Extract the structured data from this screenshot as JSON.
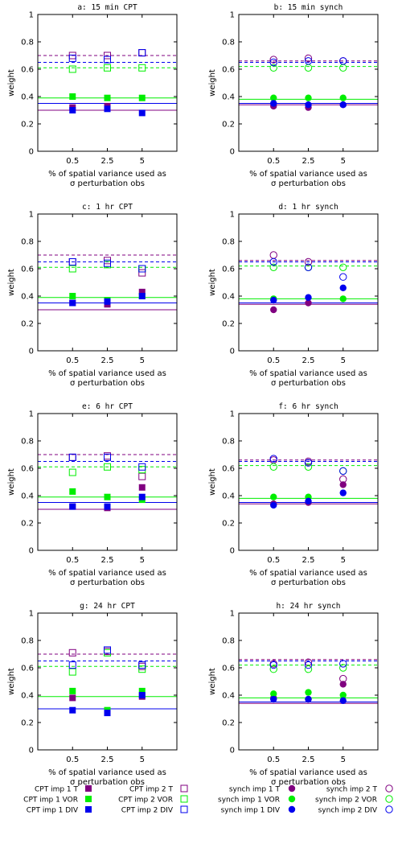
{
  "chart_data": [
    {
      "type": "scatter",
      "title": "a: 15 min CPT",
      "xlabel": [
        "% of spatial variance used as",
        "σ perturbation obs"
      ],
      "ylabel": "weight",
      "xlim": [
        0,
        4
      ],
      "ylim": [
        0,
        1
      ],
      "x_ticks": [
        1,
        2,
        3
      ],
      "x_tick_labels": [
        "0.5",
        "2.5",
        "5"
      ],
      "y_ticks": [
        "0",
        "0.2",
        "0.4",
        "0.6",
        "0.8",
        "1"
      ],
      "markers": "square",
      "series": [
        {
          "name": "CPT imp 1 T",
          "color": "#800080",
          "filled": true,
          "values": [
            0.32,
            0.33,
            null
          ]
        },
        {
          "name": "CPT imp 1 VOR",
          "color": "#00ee00",
          "filled": true,
          "values": [
            0.4,
            0.39,
            0.39
          ]
        },
        {
          "name": "CPT imp 1 DIV",
          "color": "#0000ee",
          "filled": true,
          "values": [
            0.3,
            0.31,
            0.28
          ]
        },
        {
          "name": "CPT imp 2 T",
          "color": "#800080",
          "filled": false,
          "values": [
            0.7,
            0.7,
            0.72
          ]
        },
        {
          "name": "CPT imp 2 VOR",
          "color": "#00ee00",
          "filled": false,
          "values": [
            0.6,
            0.61,
            0.61
          ]
        },
        {
          "name": "CPT imp 2 DIV",
          "color": "#0000ee",
          "filled": false,
          "values": [
            0.68,
            0.67,
            0.72
          ]
        }
      ],
      "reference_lines": {
        "solid": {
          "T": 0.3,
          "VOR": 0.39,
          "DIV": 0.35
        },
        "dashed": {
          "T": 0.7,
          "VOR": 0.61,
          "DIV": 0.65
        }
      }
    },
    {
      "type": "scatter",
      "title": "b: 15 min synch",
      "xlabel": [
        "% of spatial variance used as",
        "σ perturbation obs"
      ],
      "ylabel": "weight",
      "xlim": [
        0,
        4
      ],
      "ylim": [
        0,
        1
      ],
      "x_ticks": [
        1,
        2,
        3
      ],
      "x_tick_labels": [
        "0.5",
        "2.5",
        "5"
      ],
      "y_ticks": [
        "0",
        "0.2",
        "0.4",
        "0.6",
        "0.8",
        "1"
      ],
      "markers": "circle",
      "series": [
        {
          "name": "synch imp 1 T",
          "color": "#800080",
          "filled": true,
          "values": [
            0.33,
            0.32,
            0.34
          ]
        },
        {
          "name": "synch imp 1 VOR",
          "color": "#00ee00",
          "filled": true,
          "values": [
            0.39,
            0.39,
            0.39
          ]
        },
        {
          "name": "synch imp 1 DIV",
          "color": "#0000ee",
          "filled": true,
          "values": [
            0.35,
            0.34,
            0.34
          ]
        },
        {
          "name": "synch imp 2 T",
          "color": "#800080",
          "filled": false,
          "values": [
            0.67,
            0.68,
            0.66
          ]
        },
        {
          "name": "synch imp 2 VOR",
          "color": "#00ee00",
          "filled": false,
          "values": [
            0.61,
            0.61,
            0.61
          ]
        },
        {
          "name": "synch imp 2 DIV",
          "color": "#0000ee",
          "filled": false,
          "values": [
            0.65,
            0.66,
            0.66
          ]
        }
      ],
      "reference_lines": {
        "solid": {
          "T": 0.34,
          "VOR": 0.38,
          "DIV": 0.35
        },
        "dashed": {
          "T": 0.66,
          "VOR": 0.62,
          "DIV": 0.65
        }
      }
    },
    {
      "type": "scatter",
      "title": "c: 1 hr CPT",
      "xlabel": [
        "% of spatial variance used as",
        "σ perturbation obs"
      ],
      "ylabel": "weight",
      "xlim": [
        0,
        4
      ],
      "ylim": [
        0,
        1
      ],
      "x_ticks": [
        1,
        2,
        3
      ],
      "x_tick_labels": [
        "0.5",
        "2.5",
        "5"
      ],
      "y_ticks": [
        "0",
        "0.2",
        "0.4",
        "0.6",
        "0.8",
        "1"
      ],
      "markers": "square",
      "series": [
        {
          "name": "CPT imp 1 T",
          "color": "#800080",
          "filled": true,
          "values": [
            0.35,
            0.34,
            0.43
          ]
        },
        {
          "name": "CPT imp 1 VOR",
          "color": "#00ee00",
          "filled": true,
          "values": [
            0.4,
            0.37,
            0.4
          ]
        },
        {
          "name": "CPT imp 1 DIV",
          "color": "#0000ee",
          "filled": true,
          "values": [
            0.35,
            0.36,
            0.4
          ]
        },
        {
          "name": "CPT imp 2 T",
          "color": "#800080",
          "filled": false,
          "values": [
            0.65,
            0.66,
            0.57
          ]
        },
        {
          "name": "CPT imp 2 VOR",
          "color": "#00ee00",
          "filled": false,
          "values": [
            0.6,
            0.63,
            0.6
          ]
        },
        {
          "name": "CPT imp 2 DIV",
          "color": "#0000ee",
          "filled": false,
          "values": [
            0.65,
            0.64,
            0.6
          ]
        }
      ],
      "reference_lines": {
        "solid": {
          "T": 0.3,
          "VOR": 0.39,
          "DIV": 0.35
        },
        "dashed": {
          "T": 0.7,
          "VOR": 0.61,
          "DIV": 0.65
        }
      }
    },
    {
      "type": "scatter",
      "title": "d: 1 hr synch",
      "xlabel": [
        "% of spatial variance used as",
        "σ perturbation obs"
      ],
      "ylabel": "weight",
      "xlim": [
        0,
        4
      ],
      "ylim": [
        0,
        1
      ],
      "x_ticks": [
        1,
        2,
        3
      ],
      "x_tick_labels": [
        "0.5",
        "2.5",
        "5"
      ],
      "y_ticks": [
        "0",
        "0.2",
        "0.4",
        "0.6",
        "0.8",
        "1"
      ],
      "markers": "circle",
      "series": [
        {
          "name": "synch imp 1 T",
          "color": "#800080",
          "filled": true,
          "values": [
            0.3,
            0.35,
            null
          ]
        },
        {
          "name": "synch imp 1 VOR",
          "color": "#00ee00",
          "filled": true,
          "values": [
            0.38,
            null,
            0.38
          ]
        },
        {
          "name": "synch imp 1 DIV",
          "color": "#0000ee",
          "filled": true,
          "values": [
            0.37,
            0.39,
            0.46
          ]
        },
        {
          "name": "synch imp 2 T",
          "color": "#800080",
          "filled": false,
          "values": [
            0.7,
            0.65,
            null
          ]
        },
        {
          "name": "synch imp 2 VOR",
          "color": "#00ee00",
          "filled": false,
          "values": [
            0.61,
            0.61,
            0.61
          ]
        },
        {
          "name": "synch imp 2 DIV",
          "color": "#0000ee",
          "filled": false,
          "values": [
            0.65,
            0.61,
            0.54
          ]
        }
      ],
      "reference_lines": {
        "solid": {
          "T": 0.34,
          "VOR": 0.38,
          "DIV": 0.35
        },
        "dashed": {
          "T": 0.66,
          "VOR": 0.62,
          "DIV": 0.65
        }
      }
    },
    {
      "type": "scatter",
      "title": "e: 6 hr CPT",
      "xlabel": [
        "% of spatial variance used as",
        "σ perturbation obs"
      ],
      "ylabel": "weight",
      "xlim": [
        0,
        4
      ],
      "ylim": [
        0,
        1
      ],
      "x_ticks": [
        1,
        2,
        3
      ],
      "x_tick_labels": [
        "0.5",
        "2.5",
        "5"
      ],
      "y_ticks": [
        "0",
        "0.2",
        "0.4",
        "0.6",
        "0.8",
        "1"
      ],
      "markers": "square",
      "series": [
        {
          "name": "CPT imp 1 T",
          "color": "#800080",
          "filled": true,
          "values": [
            0.32,
            0.31,
            0.46
          ]
        },
        {
          "name": "CPT imp 1 VOR",
          "color": "#00ee00",
          "filled": true,
          "values": [
            0.43,
            0.39,
            0.37
          ]
        },
        {
          "name": "CPT imp 1 DIV",
          "color": "#0000ee",
          "filled": true,
          "values": [
            0.32,
            0.32,
            0.39
          ]
        },
        {
          "name": "CPT imp 2 T",
          "color": "#800080",
          "filled": false,
          "values": [
            0.68,
            0.69,
            0.54
          ]
        },
        {
          "name": "CPT imp 2 VOR",
          "color": "#00ee00",
          "filled": false,
          "values": [
            0.57,
            0.61,
            0.59
          ]
        },
        {
          "name": "CPT imp 2 DIV",
          "color": "#0000ee",
          "filled": false,
          "values": [
            0.68,
            0.68,
            0.61
          ]
        }
      ],
      "reference_lines": {
        "solid": {
          "T": 0.3,
          "VOR": 0.39,
          "DIV": 0.35
        },
        "dashed": {
          "T": 0.7,
          "VOR": 0.61,
          "DIV": 0.65
        }
      }
    },
    {
      "type": "scatter",
      "title": "f: 6 hr synch",
      "xlabel": [
        "% of spatial variance used as",
        "σ perturbation obs"
      ],
      "ylabel": "weight",
      "xlim": [
        0,
        4
      ],
      "ylim": [
        0,
        1
      ],
      "x_ticks": [
        1,
        2,
        3
      ],
      "x_tick_labels": [
        "0.5",
        "2.5",
        "5"
      ],
      "y_ticks": [
        "0",
        "0.2",
        "0.4",
        "0.6",
        "0.8",
        "1"
      ],
      "markers": "circle",
      "series": [
        {
          "name": "synch imp 1 T",
          "color": "#800080",
          "filled": true,
          "values": [
            0.34,
            0.35,
            0.48
          ]
        },
        {
          "name": "synch imp 1 VOR",
          "color": "#00ee00",
          "filled": true,
          "values": [
            0.39,
            0.39,
            null
          ]
        },
        {
          "name": "synch imp 1 DIV",
          "color": "#0000ee",
          "filled": true,
          "values": [
            0.33,
            0.36,
            0.42
          ]
        },
        {
          "name": "synch imp 2 T",
          "color": "#800080",
          "filled": false,
          "values": [
            0.66,
            0.65,
            0.52
          ]
        },
        {
          "name": "synch imp 2 VOR",
          "color": "#00ee00",
          "filled": false,
          "values": [
            0.61,
            0.61,
            0.58
          ]
        },
        {
          "name": "synch imp 2 DIV",
          "color": "#0000ee",
          "filled": false,
          "values": [
            0.67,
            0.64,
            0.58
          ]
        }
      ],
      "reference_lines": {
        "solid": {
          "T": 0.34,
          "VOR": 0.38,
          "DIV": 0.35
        },
        "dashed": {
          "T": 0.66,
          "VOR": 0.62,
          "DIV": 0.65
        }
      }
    },
    {
      "type": "scatter",
      "title": "g: 24 hr CPT",
      "xlabel": [
        "% of spatial variance used as",
        "σ perturbation obs"
      ],
      "ylabel": "weight",
      "xlim": [
        0,
        4
      ],
      "ylim": [
        0,
        1
      ],
      "x_ticks": [
        1,
        2,
        3
      ],
      "x_tick_labels": [
        "0.5",
        "2.5",
        "5"
      ],
      "y_ticks": [
        "0",
        "0.2",
        "0.4",
        "0.6",
        "0.8",
        "1"
      ],
      "markers": "square",
      "series": [
        {
          "name": "CPT imp 1 T",
          "color": "#800080",
          "filled": true,
          "values": [
            0.38,
            null,
            0.39
          ]
        },
        {
          "name": "CPT imp 1 VOR",
          "color": "#00ee00",
          "filled": true,
          "values": [
            0.43,
            0.29,
            0.43
          ]
        },
        {
          "name": "CPT imp 1 DIV",
          "color": "#0000ee",
          "filled": true,
          "values": [
            0.29,
            0.27,
            0.4
          ]
        },
        {
          "name": "CPT imp 2 T",
          "color": "#800080",
          "filled": false,
          "values": [
            0.71,
            0.72,
            0.61
          ]
        },
        {
          "name": "CPT imp 2 VOR",
          "color": "#00ee00",
          "filled": false,
          "values": [
            0.57,
            0.71,
            0.59
          ]
        },
        {
          "name": "CPT imp 2 DIV",
          "color": "#0000ee",
          "filled": false,
          "values": [
            0.62,
            0.73,
            0.62
          ]
        }
      ],
      "reference_lines": {
        "solid": {
          "T": 0.3,
          "VOR": 0.39,
          "DIV": 0.3
        },
        "dashed": {
          "T": 0.7,
          "VOR": 0.61,
          "DIV": 0.65
        }
      }
    },
    {
      "type": "scatter",
      "title": "h: 24 hr synch",
      "xlabel": [
        "% of spatial variance used as",
        "σ perturbation obs"
      ],
      "ylabel": "weight",
      "xlim": [
        0,
        4
      ],
      "ylim": [
        0,
        1
      ],
      "x_ticks": [
        1,
        2,
        3
      ],
      "x_tick_labels": [
        "0.5",
        "2.5",
        "5"
      ],
      "y_ticks": [
        "0",
        "0.2",
        "0.4",
        "0.6",
        "0.8",
        "1"
      ],
      "markers": "circle",
      "series": [
        {
          "name": "synch imp 1 T",
          "color": "#800080",
          "filled": true,
          "values": [
            0.38,
            0.37,
            0.48
          ]
        },
        {
          "name": "synch imp 1 VOR",
          "color": "#00ee00",
          "filled": true,
          "values": [
            0.41,
            0.42,
            0.4
          ]
        },
        {
          "name": "synch imp 1 DIV",
          "color": "#0000ee",
          "filled": true,
          "values": [
            0.37,
            0.37,
            0.36
          ]
        },
        {
          "name": "synch imp 2 T",
          "color": "#800080",
          "filled": false,
          "values": [
            0.63,
            0.64,
            0.52
          ]
        },
        {
          "name": "synch imp 2 VOR",
          "color": "#00ee00",
          "filled": false,
          "values": [
            0.59,
            0.59,
            0.6
          ]
        },
        {
          "name": "synch imp 2 DIV",
          "color": "#0000ee",
          "filled": false,
          "values": [
            0.62,
            0.62,
            0.63
          ]
        }
      ],
      "reference_lines": {
        "solid": {
          "T": 0.34,
          "VOR": 0.38,
          "DIV": 0.35
        },
        "dashed": {
          "T": 0.66,
          "VOR": 0.62,
          "DIV": 0.65
        }
      }
    }
  ],
  "legend": {
    "position": "bottom",
    "entries": [
      {
        "label": "CPT imp 1 T",
        "marker": "square",
        "filled": true,
        "color": "#800080"
      },
      {
        "label": "CPT imp 1 VOR",
        "marker": "square",
        "filled": true,
        "color": "#00ee00"
      },
      {
        "label": "CPT imp 1 DIV",
        "marker": "square",
        "filled": true,
        "color": "#0000ee"
      },
      {
        "label": "CPT imp 2 T",
        "marker": "square",
        "filled": false,
        "color": "#800080"
      },
      {
        "label": "CPT imp 2 VOR",
        "marker": "square",
        "filled": false,
        "color": "#00ee00"
      },
      {
        "label": "CPT imp 2 DIV",
        "marker": "square",
        "filled": false,
        "color": "#0000ee"
      },
      {
        "label": "synch imp 1 T",
        "marker": "circle",
        "filled": true,
        "color": "#800080"
      },
      {
        "label": "synch imp 1 VOR",
        "marker": "circle",
        "filled": true,
        "color": "#00ee00"
      },
      {
        "label": "synch imp 1 DIV",
        "marker": "circle",
        "filled": true,
        "color": "#0000ee"
      },
      {
        "label": "synch imp 2 T",
        "marker": "circle",
        "filled": false,
        "color": "#800080"
      },
      {
        "label": "synch imp 2 VOR",
        "marker": "circle",
        "filled": false,
        "color": "#00ee00"
      },
      {
        "label": "synch imp 2 DIV",
        "marker": "circle",
        "filled": false,
        "color": "#0000ee"
      }
    ]
  },
  "colors": {
    "T": "#800080",
    "VOR": "#00ee00",
    "DIV": "#0000ee"
  }
}
